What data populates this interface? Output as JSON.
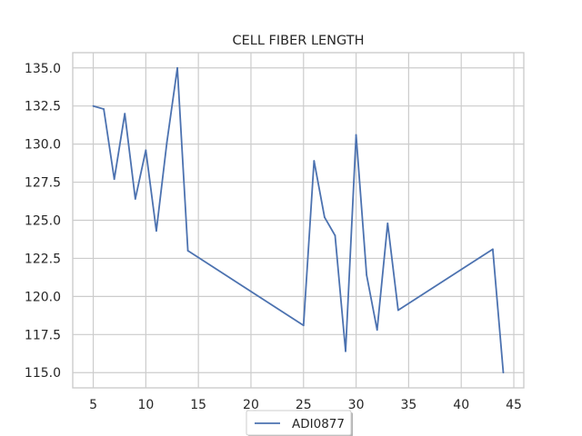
{
  "chart_data": {
    "type": "line",
    "title": "CELL FIBER LENGTH",
    "xlabel": "",
    "ylabel": "",
    "xlim": [
      3.05,
      45.95
    ],
    "ylim": [
      114.0,
      136.0
    ],
    "xticks": [
      5,
      10,
      15,
      20,
      25,
      30,
      35,
      40,
      45
    ],
    "yticks": [
      115.0,
      117.5,
      120.0,
      122.5,
      125.0,
      127.5,
      130.0,
      132.5,
      135.0
    ],
    "grid": true,
    "legend_position": "bottom-center",
    "series": [
      {
        "name": "ADI0877",
        "color": "#4c72b0",
        "x": [
          5,
          6,
          7,
          8,
          9,
          10,
          11,
          12,
          13,
          14,
          25,
          26,
          27,
          28,
          29,
          30,
          31,
          32,
          33,
          34,
          43,
          44
        ],
        "y": [
          132.5,
          132.3,
          127.7,
          132.0,
          126.4,
          129.6,
          124.3,
          130.1,
          135.0,
          123.0,
          118.1,
          128.9,
          125.2,
          124.0,
          116.4,
          130.6,
          121.4,
          117.8,
          124.8,
          119.1,
          123.1,
          115.0
        ]
      }
    ]
  }
}
